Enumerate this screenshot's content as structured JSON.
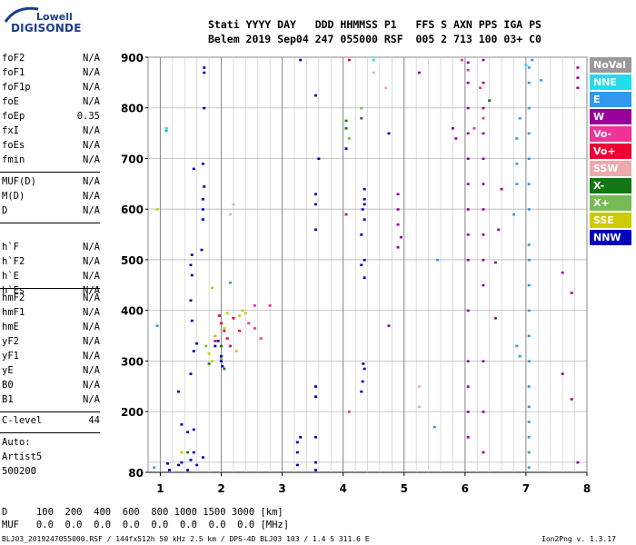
{
  "logo": {
    "top": "Lowell",
    "bottom": "DIGISONDE"
  },
  "header": {
    "line1": "Stati YYYY DAY   DDD HHMMSS P1   FFS S AXN PPS IGA PS",
    "line2": "Belem 2019 Sep04 247 055000 RSF  005 2 713 100 03+ C0"
  },
  "params_group1": [
    {
      "name": "foF2",
      "value": "N/A"
    },
    {
      "name": "foF1",
      "value": "N/A"
    },
    {
      "name": "foF1p",
      "value": "N/A"
    },
    {
      "name": "foE",
      "value": "N/A"
    },
    {
      "name": "foEp",
      "value": "0.35"
    },
    {
      "name": "fxI",
      "value": "N/A"
    },
    {
      "name": "foEs",
      "value": "N/A"
    },
    {
      "name": "fmin",
      "value": "N/A"
    }
  ],
  "params_group2": [
    {
      "name": "MUF(D)",
      "value": "N/A"
    },
    {
      "name": "M(D)",
      "value": "N/A"
    },
    {
      "name": "D",
      "value": "N/A"
    }
  ],
  "params_group3": [
    {
      "name": "h`F",
      "value": "N/A"
    },
    {
      "name": "h`F2",
      "value": "N/A"
    },
    {
      "name": "h`E",
      "value": "N/A"
    },
    {
      "name": "h`Es",
      "value": "N/A"
    }
  ],
  "params_group4": [
    {
      "name": "hmF2",
      "value": "N/A"
    },
    {
      "name": "hmF1",
      "value": "N/A"
    },
    {
      "name": "hmE",
      "value": "N/A"
    },
    {
      "name": "yF2",
      "value": "N/A"
    },
    {
      "name": "yF1",
      "value": "N/A"
    },
    {
      "name": "yE",
      "value": "N/A"
    },
    {
      "name": "B0",
      "value": "N/A"
    },
    {
      "name": "B1",
      "value": "N/A"
    }
  ],
  "clevel": {
    "name": "C-level",
    "value": "44"
  },
  "auto": [
    "Auto:",
    "Artist5",
    "500200"
  ],
  "bottom": {
    "d_line": "D     100  200  400  600  800 1000 1500 3000 [km]",
    "muf_line": "MUF   0.0  0.0  0.0  0.0  0.0  0.0  0.0  0.0 [MHz]"
  },
  "footer": {
    "left": "BLJ03_2019247055000.RSF / 144fx512h 50 kHz 2.5 km / DPS-4D BLJ03 103 / 1.4 S 311.6 E",
    "right": "Ion2Png v. 1.3.17"
  },
  "legend": [
    {
      "label": "NoVal",
      "color": "#999999"
    },
    {
      "label": "NNE",
      "color": "#22ddee"
    },
    {
      "label": "E",
      "color": "#3399ee"
    },
    {
      "label": "W",
      "color": "#990099"
    },
    {
      "label": "Vo-",
      "color": "#ee3399"
    },
    {
      "label": "Vo+",
      "color": "#ee0033"
    },
    {
      "label": "SSW",
      "color": "#eeaaaa"
    },
    {
      "label": "X-",
      "color": "#117711"
    },
    {
      "label": "X+",
      "color": "#77bb55"
    },
    {
      "label": "SSE",
      "color": "#cccc00"
    },
    {
      "label": "NNW",
      "color": "#0000bb"
    }
  ],
  "chart_data": {
    "type": "scatter",
    "title": "",
    "xlabel": "",
    "ylabel": "",
    "xlim": [
      0.8,
      8.0
    ],
    "ylim": [
      80,
      900
    ],
    "x_ticks": [
      1,
      2,
      3,
      4,
      5,
      6,
      7,
      8
    ],
    "y_ticks": [
      100,
      200,
      300,
      400,
      500,
      600,
      700,
      800,
      900
    ],
    "y_tick_labels": [
      "80",
      "",
      "200",
      "300",
      "400",
      "500",
      "600",
      "700",
      "800",
      "900"
    ],
    "y_tick_values": [
      80,
      100,
      200,
      300,
      400,
      500,
      600,
      700,
      800,
      900
    ],
    "grid": true,
    "x_minor_step": 0.2,
    "series": [
      {
        "name": "NNW",
        "color": "#0000bb",
        "points": [
          [
            1.12,
            98
          ],
          [
            1.15,
            85
          ],
          [
            1.3,
            95
          ],
          [
            1.35,
            100
          ],
          [
            1.45,
            85
          ],
          [
            1.5,
            105
          ],
          [
            1.55,
            120
          ],
          [
            1.6,
            95
          ],
          [
            1.7,
            110
          ],
          [
            1.35,
            175
          ],
          [
            1.45,
            160
          ],
          [
            1.55,
            165
          ],
          [
            1.3,
            240
          ],
          [
            1.5,
            275
          ],
          [
            1.55,
            320
          ],
          [
            1.6,
            335
          ],
          [
            1.52,
            380
          ],
          [
            1.5,
            420
          ],
          [
            1.52,
            470
          ],
          [
            1.5,
            490
          ],
          [
            1.52,
            510
          ],
          [
            1.68,
            520
          ],
          [
            1.7,
            580
          ],
          [
            1.7,
            600
          ],
          [
            1.7,
            620
          ],
          [
            1.72,
            645
          ],
          [
            1.55,
            680
          ],
          [
            1.7,
            690
          ],
          [
            1.72,
            800
          ],
          [
            1.72,
            870
          ],
          [
            1.72,
            880
          ],
          [
            1.9,
            330
          ],
          [
            1.95,
            340
          ],
          [
            2.0,
            300
          ],
          [
            2.0,
            310
          ],
          [
            2.02,
            290
          ],
          [
            3.25,
            95
          ],
          [
            3.25,
            120
          ],
          [
            3.25,
            140
          ],
          [
            3.3,
            150
          ],
          [
            3.55,
            85
          ],
          [
            3.55,
            100
          ],
          [
            3.55,
            150
          ],
          [
            3.55,
            230
          ],
          [
            3.55,
            250
          ],
          [
            3.55,
            560
          ],
          [
            3.55,
            610
          ],
          [
            3.55,
            630
          ],
          [
            3.6,
            700
          ],
          [
            3.55,
            825
          ],
          [
            3.3,
            895
          ],
          [
            4.3,
            240
          ],
          [
            4.32,
            260
          ],
          [
            4.35,
            285
          ],
          [
            4.33,
            295
          ],
          [
            4.3,
            490
          ],
          [
            4.35,
            500
          ],
          [
            4.3,
            550
          ],
          [
            4.35,
            580
          ],
          [
            4.32,
            600
          ],
          [
            4.35,
            610
          ],
          [
            4.35,
            620
          ],
          [
            4.35,
            640
          ],
          [
            4.35,
            465
          ],
          [
            4.05,
            720
          ],
          [
            4.75,
            750
          ]
        ]
      },
      {
        "name": "W",
        "color": "#990099",
        "points": [
          [
            6.05,
            150
          ],
          [
            6.05,
            200
          ],
          [
            6.05,
            250
          ],
          [
            6.05,
            300
          ],
          [
            6.05,
            400
          ],
          [
            6.05,
            500
          ],
          [
            6.05,
            550
          ],
          [
            6.05,
            600
          ],
          [
            6.05,
            650
          ],
          [
            6.05,
            700
          ],
          [
            6.05,
            750
          ],
          [
            6.05,
            800
          ],
          [
            6.05,
            850
          ],
          [
            6.05,
            890
          ],
          [
            6.3,
            120
          ],
          [
            6.3,
            200
          ],
          [
            6.3,
            300
          ],
          [
            6.3,
            450
          ],
          [
            6.3,
            500
          ],
          [
            6.3,
            550
          ],
          [
            6.3,
            600
          ],
          [
            6.3,
            650
          ],
          [
            6.3,
            700
          ],
          [
            6.3,
            750
          ],
          [
            6.3,
            800
          ],
          [
            6.3,
            850
          ],
          [
            6.3,
            895
          ],
          [
            6.5,
            385
          ],
          [
            6.5,
            495
          ],
          [
            6.55,
            560
          ],
          [
            6.6,
            640
          ],
          [
            4.9,
            525
          ],
          [
            4.95,
            545
          ],
          [
            4.9,
            570
          ],
          [
            4.9,
            600
          ],
          [
            4.9,
            630
          ],
          [
            5.25,
            870
          ],
          [
            5.8,
            760
          ],
          [
            5.85,
            740
          ],
          [
            7.85,
            880
          ],
          [
            7.85,
            860
          ],
          [
            7.85,
            840
          ],
          [
            7.6,
            475
          ],
          [
            7.75,
            435
          ],
          [
            7.6,
            275
          ],
          [
            7.75,
            225
          ],
          [
            7.85,
            100
          ],
          [
            4.75,
            370
          ]
        ]
      },
      {
        "name": "E",
        "color": "#3399ee",
        "points": [
          [
            7.05,
            120
          ],
          [
            7.05,
            150
          ],
          [
            7.05,
            180
          ],
          [
            7.05,
            210
          ],
          [
            7.05,
            250
          ],
          [
            7.05,
            300
          ],
          [
            7.05,
            350
          ],
          [
            7.05,
            400
          ],
          [
            7.05,
            450
          ],
          [
            7.05,
            500
          ],
          [
            7.05,
            530
          ],
          [
            7.05,
            600
          ],
          [
            7.05,
            650
          ],
          [
            7.05,
            700
          ],
          [
            7.05,
            750
          ],
          [
            7.05,
            800
          ],
          [
            7.05,
            850
          ],
          [
            7.05,
            880
          ],
          [
            7.1,
            895
          ],
          [
            6.9,
            780
          ],
          [
            6.85,
            740
          ],
          [
            6.85,
            690
          ],
          [
            6.85,
            650
          ],
          [
            6.8,
            590
          ],
          [
            6.85,
            330
          ],
          [
            6.9,
            310
          ],
          [
            7.25,
            855
          ],
          [
            7.05,
            90
          ],
          [
            5.55,
            500
          ],
          [
            5.5,
            170
          ],
          [
            0.95,
            370
          ],
          [
            0.9,
            90
          ],
          [
            1.1,
            755
          ],
          [
            2.15,
            455
          ]
        ]
      },
      {
        "name": "Vo+",
        "color": "#ee0033",
        "points": [
          [
            1.97,
            390
          ],
          [
            2.0,
            375
          ],
          [
            2.05,
            360
          ],
          [
            2.1,
            345
          ],
          [
            2.15,
            330
          ],
          [
            1.9,
            340
          ],
          [
            2.2,
            385
          ],
          [
            2.3,
            360
          ],
          [
            4.05,
            590
          ],
          [
            4.1,
            895
          ]
        ]
      },
      {
        "name": "Vo-",
        "color": "#ee3399",
        "points": [
          [
            2.45,
            375
          ],
          [
            2.55,
            365
          ],
          [
            2.65,
            345
          ],
          [
            2.8,
            410
          ],
          [
            2.55,
            410
          ],
          [
            4.1,
            200
          ],
          [
            5.95,
            895
          ],
          [
            6.05,
            875
          ],
          [
            6.25,
            840
          ],
          [
            6.3,
            780
          ],
          [
            6.15,
            760
          ]
        ]
      },
      {
        "name": "SSW",
        "color": "#eeaaaa",
        "points": [
          [
            2.2,
            610
          ],
          [
            2.15,
            590
          ],
          [
            4.7,
            840
          ],
          [
            4.5,
            870
          ],
          [
            5.25,
            250
          ],
          [
            5.25,
            210
          ]
        ]
      },
      {
        "name": "SSE",
        "color": "#cccc00",
        "points": [
          [
            0.95,
            600
          ],
          [
            1.85,
            445
          ],
          [
            1.9,
            350
          ],
          [
            1.85,
            300
          ],
          [
            2.05,
            365
          ],
          [
            2.1,
            395
          ],
          [
            2.25,
            320
          ],
          [
            2.3,
            390
          ],
          [
            2.35,
            400
          ],
          [
            2.4,
            395
          ],
          [
            1.8,
            315
          ],
          [
            1.35,
            120
          ]
        ]
      },
      {
        "name": "X-",
        "color": "#117711",
        "points": [
          [
            4.05,
            760
          ],
          [
            4.05,
            775
          ],
          [
            4.3,
            780
          ],
          [
            6.4,
            815
          ],
          [
            2.0,
            330
          ],
          [
            1.8,
            295
          ],
          [
            2.05,
            285
          ],
          [
            1.45,
            120
          ]
        ]
      },
      {
        "name": "X+",
        "color": "#77bb55",
        "points": [
          [
            1.75,
            330
          ],
          [
            2.0,
            305
          ],
          [
            4.3,
            800
          ],
          [
            4.1,
            740
          ]
        ]
      },
      {
        "name": "NNE",
        "color": "#22ddee",
        "points": [
          [
            1.1,
            760
          ],
          [
            4.5,
            895
          ],
          [
            7.0,
            885
          ]
        ]
      }
    ]
  }
}
